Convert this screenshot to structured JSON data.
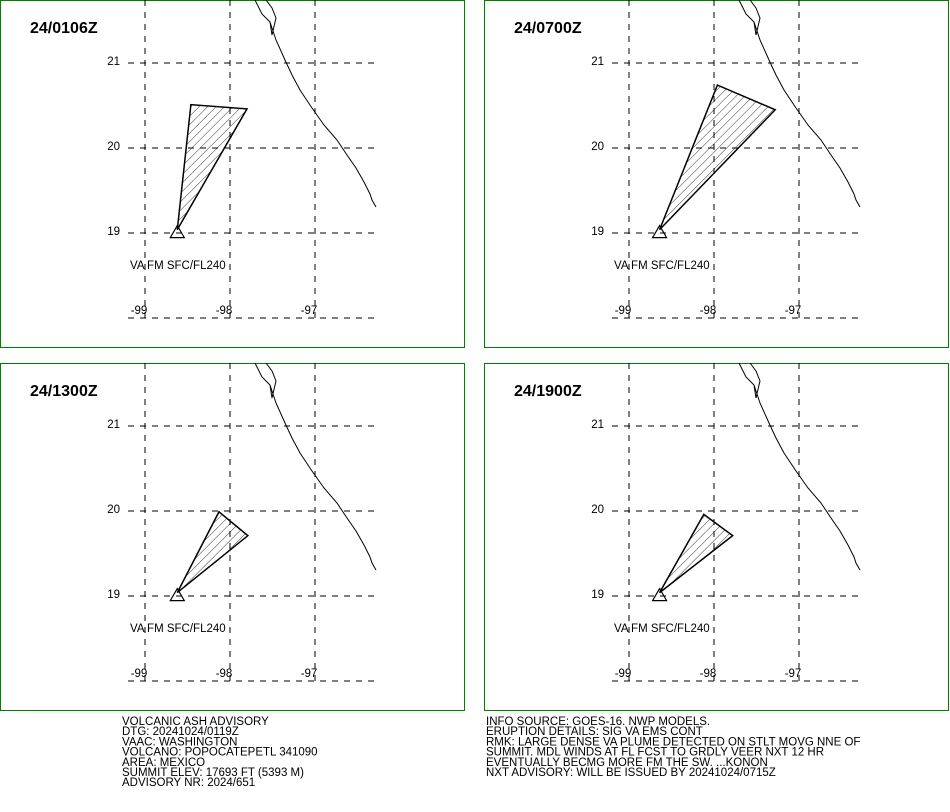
{
  "panels": [
    {
      "time": "24/0106Z",
      "label": "VA FM SFC/FL240",
      "plume": {
        "lon": [
          -98.62,
          -98.46,
          -97.8
        ],
        "lat": [
          19.04,
          20.51,
          20.46
        ]
      }
    },
    {
      "time": "24/0700Z",
      "label": "VA FM SFC/FL240",
      "plume": {
        "lon": [
          -98.64,
          -97.96,
          -97.28
        ],
        "lat": [
          19.04,
          20.74,
          20.45
        ]
      }
    },
    {
      "time": "24/1300Z",
      "label": "VA FM SFC/FL240",
      "plume": {
        "lon": [
          -98.62,
          -98.13,
          -97.79
        ],
        "lat": [
          19.04,
          19.99,
          19.71
        ]
      }
    },
    {
      "time": "24/1900Z",
      "label": "VA FM SFC/FL240",
      "plume": {
        "lon": [
          -98.64,
          -98.12,
          -97.78
        ],
        "lat": [
          19.04,
          19.96,
          19.71
        ]
      }
    }
  ],
  "lat_ticks": [
    21,
    20,
    19
  ],
  "lon_ticks": [
    -99,
    -98,
    -97
  ],
  "advisory_left": [
    "VOLCANIC ASH ADVISORY",
    "DTG: 20241024/0119Z",
    "VAAC: WASHINGTON",
    "VOLCANO: POPOCATEPETL 341090",
    "AREA: MEXICO",
    "SUMMIT ELEV: 17693 FT (5393 M)",
    "ADVISORY NR: 2024/651"
  ],
  "advisory_right": [
    "INFO SOURCE: GOES-16. NWP MODELS.",
    "ERUPTION DETAILS: SIG VA EMS CONT",
    "RMK: LARGE DENSE VA PLUME DETECTED ON STLT MOVG NNE OF",
    "SUMMIT. MDL WINDS AT FL FCST TO GRDLY VEER NXT 12 HR",
    "EVENTUALLY BECMG MORE FM THE SW. ...KONON",
    "NXT ADVISORY: WILL BE ISSUED BY 20241024/0715Z"
  ]
}
